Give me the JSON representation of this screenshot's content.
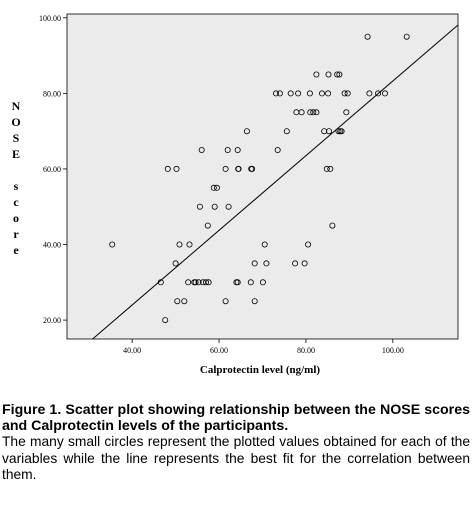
{
  "chart_data": {
    "type": "scatter",
    "xlabel": "Calprotectin level (ng/ml)",
    "ylabel": "NOSE score",
    "ylabel_words": [
      "NOSE",
      "score"
    ],
    "xlim": [
      25,
      115
    ],
    "ylim": [
      15,
      101
    ],
    "x_ticks": [
      40,
      60,
      80,
      100
    ],
    "x_tick_labels": [
      "40.00",
      "60.00",
      "80.00",
      "100.00"
    ],
    "y_ticks": [
      20,
      40,
      60,
      80,
      100
    ],
    "y_tick_labels": [
      "20.00",
      "40.00",
      "60.00",
      "80.00",
      "100.00"
    ],
    "grid": false,
    "background_color": "#ebebeb",
    "points": [
      {
        "x": 35.4,
        "y": 40
      },
      {
        "x": 46.6,
        "y": 30
      },
      {
        "x": 47.6,
        "y": 20
      },
      {
        "x": 48.2,
        "y": 60
      },
      {
        "x": 50.0,
        "y": 35
      },
      {
        "x": 50.2,
        "y": 60
      },
      {
        "x": 50.4,
        "y": 25
      },
      {
        "x": 50.9,
        "y": 40
      },
      {
        "x": 52.0,
        "y": 25
      },
      {
        "x": 52.9,
        "y": 30
      },
      {
        "x": 53.2,
        "y": 40
      },
      {
        "x": 54.3,
        "y": 30
      },
      {
        "x": 54.6,
        "y": 30
      },
      {
        "x": 55.6,
        "y": 50
      },
      {
        "x": 55.3,
        "y": 30
      },
      {
        "x": 56.0,
        "y": 65
      },
      {
        "x": 56.3,
        "y": 30
      },
      {
        "x": 57.0,
        "y": 30
      },
      {
        "x": 57.4,
        "y": 45
      },
      {
        "x": 57.6,
        "y": 30
      },
      {
        "x": 58.8,
        "y": 55
      },
      {
        "x": 59.0,
        "y": 50
      },
      {
        "x": 59.5,
        "y": 55
      },
      {
        "x": 61.5,
        "y": 25
      },
      {
        "x": 61.5,
        "y": 60
      },
      {
        "x": 62.0,
        "y": 65
      },
      {
        "x": 62.2,
        "y": 50
      },
      {
        "x": 64.0,
        "y": 30
      },
      {
        "x": 64.3,
        "y": 30
      },
      {
        "x": 64.3,
        "y": 65
      },
      {
        "x": 64.4,
        "y": 60
      },
      {
        "x": 64.5,
        "y": 60
      },
      {
        "x": 66.4,
        "y": 70
      },
      {
        "x": 67.3,
        "y": 30
      },
      {
        "x": 67.4,
        "y": 60
      },
      {
        "x": 67.6,
        "y": 60
      },
      {
        "x": 68.2,
        "y": 35
      },
      {
        "x": 68.2,
        "y": 25
      },
      {
        "x": 70.1,
        "y": 30
      },
      {
        "x": 70.5,
        "y": 40
      },
      {
        "x": 70.9,
        "y": 35
      },
      {
        "x": 73.1,
        "y": 80
      },
      {
        "x": 73.5,
        "y": 65
      },
      {
        "x": 74.0,
        "y": 80
      },
      {
        "x": 75.6,
        "y": 70
      },
      {
        "x": 76.5,
        "y": 80
      },
      {
        "x": 77.5,
        "y": 35
      },
      {
        "x": 77.8,
        "y": 75
      },
      {
        "x": 78.2,
        "y": 80
      },
      {
        "x": 79.0,
        "y": 75
      },
      {
        "x": 79.7,
        "y": 35
      },
      {
        "x": 80.5,
        "y": 40
      },
      {
        "x": 80.9,
        "y": 80
      },
      {
        "x": 81.0,
        "y": 75
      },
      {
        "x": 81.7,
        "y": 75
      },
      {
        "x": 82.4,
        "y": 75
      },
      {
        "x": 82.4,
        "y": 85
      },
      {
        "x": 83.7,
        "y": 80
      },
      {
        "x": 84.2,
        "y": 70
      },
      {
        "x": 84.8,
        "y": 60
      },
      {
        "x": 85.1,
        "y": 80
      },
      {
        "x": 85.2,
        "y": 85
      },
      {
        "x": 85.3,
        "y": 70
      },
      {
        "x": 85.6,
        "y": 60
      },
      {
        "x": 86.1,
        "y": 45
      },
      {
        "x": 87.2,
        "y": 85
      },
      {
        "x": 87.5,
        "y": 70
      },
      {
        "x": 87.7,
        "y": 85
      },
      {
        "x": 87.9,
        "y": 70
      },
      {
        "x": 88.2,
        "y": 70
      },
      {
        "x": 88.9,
        "y": 80
      },
      {
        "x": 89.3,
        "y": 75
      },
      {
        "x": 89.6,
        "y": 80
      },
      {
        "x": 94.2,
        "y": 95
      },
      {
        "x": 94.6,
        "y": 80
      },
      {
        "x": 96.6,
        "y": 80
      },
      {
        "x": 98.2,
        "y": 80
      },
      {
        "x": 103.2,
        "y": 95
      }
    ],
    "fit_line": {
      "x": [
        30.9,
        115
      ],
      "y": [
        15,
        98.1
      ]
    }
  },
  "caption": {
    "title": "Figure 1. Scatter plot showing relationship between the NOSE scores and Calprotectin levels of the participants.",
    "body": "The many small circles represent the plotted values obtained for each of the variables while the line represents the best fit for the correlation between them."
  }
}
